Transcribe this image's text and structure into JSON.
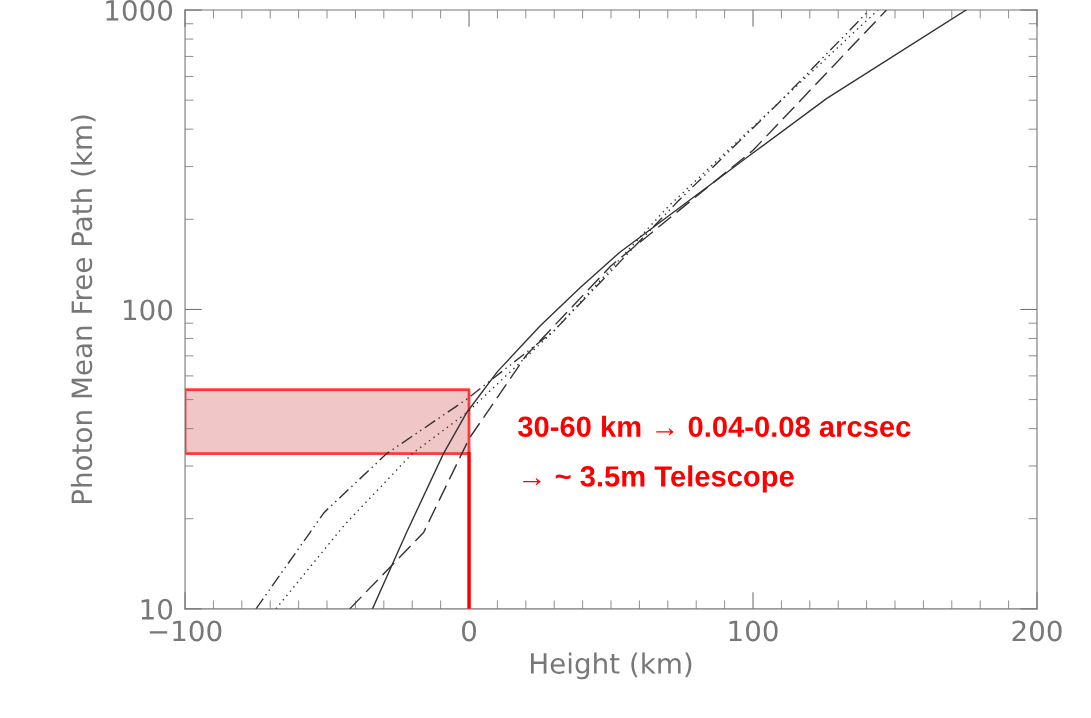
{
  "chart_data": {
    "type": "line",
    "xlabel": "Height (km)",
    "ylabel": "Photon Mean Free Path (km)",
    "log": "y",
    "xlim": [
      -100,
      200
    ],
    "xticks": [
      {
        "value": -100,
        "label": "−100"
      },
      0,
      100,
      200
    ],
    "ylim": [
      10,
      1000
    ],
    "yticks": [
      10,
      100,
      1000
    ],
    "grid": false,
    "series": [
      {
        "color": "#333333",
        "line_style": "solid",
        "x": [
          -34,
          -22,
          -9,
          -1,
          10,
          25,
          39,
          53,
          99,
          126,
          175
        ],
        "values": [
          10,
          18,
          33,
          45,
          62,
          88,
          118,
          155,
          328,
          507,
          1000
        ]
      },
      {
        "color": "#333333",
        "line_style": "dashed",
        "x": [
          -42,
          -16,
          0,
          20,
          50,
          100,
          147
        ],
        "values": [
          10,
          18,
          37,
          70,
          140,
          340,
          1000
        ]
      },
      {
        "color": "#333333",
        "line_style": "dotted",
        "x": [
          -68,
          -44,
          -20,
          -1,
          30,
          70,
          110,
          144
        ],
        "values": [
          10,
          19,
          33,
          45,
          85,
          220,
          500,
          1000
        ]
      },
      {
        "color": "#333333",
        "line_style": "dashdot",
        "x": [
          -75,
          -51,
          -29,
          -1,
          30,
          73,
          110,
          141
        ],
        "values": [
          10,
          21,
          33,
          50,
          85,
          227,
          500,
          1000
        ]
      }
    ],
    "bands": [
      {
        "axis": "y",
        "from": 33,
        "to": 54,
        "color": "#ebb3b3"
      }
    ],
    "ref_lines": [
      {
        "axis": "x",
        "value": 0,
        "color": "#ff0000"
      }
    ],
    "annotations": [
      "30-60 km → 0.04-0.08 arcsec",
      "→ ~ 3.5m Telescope"
    ]
  }
}
